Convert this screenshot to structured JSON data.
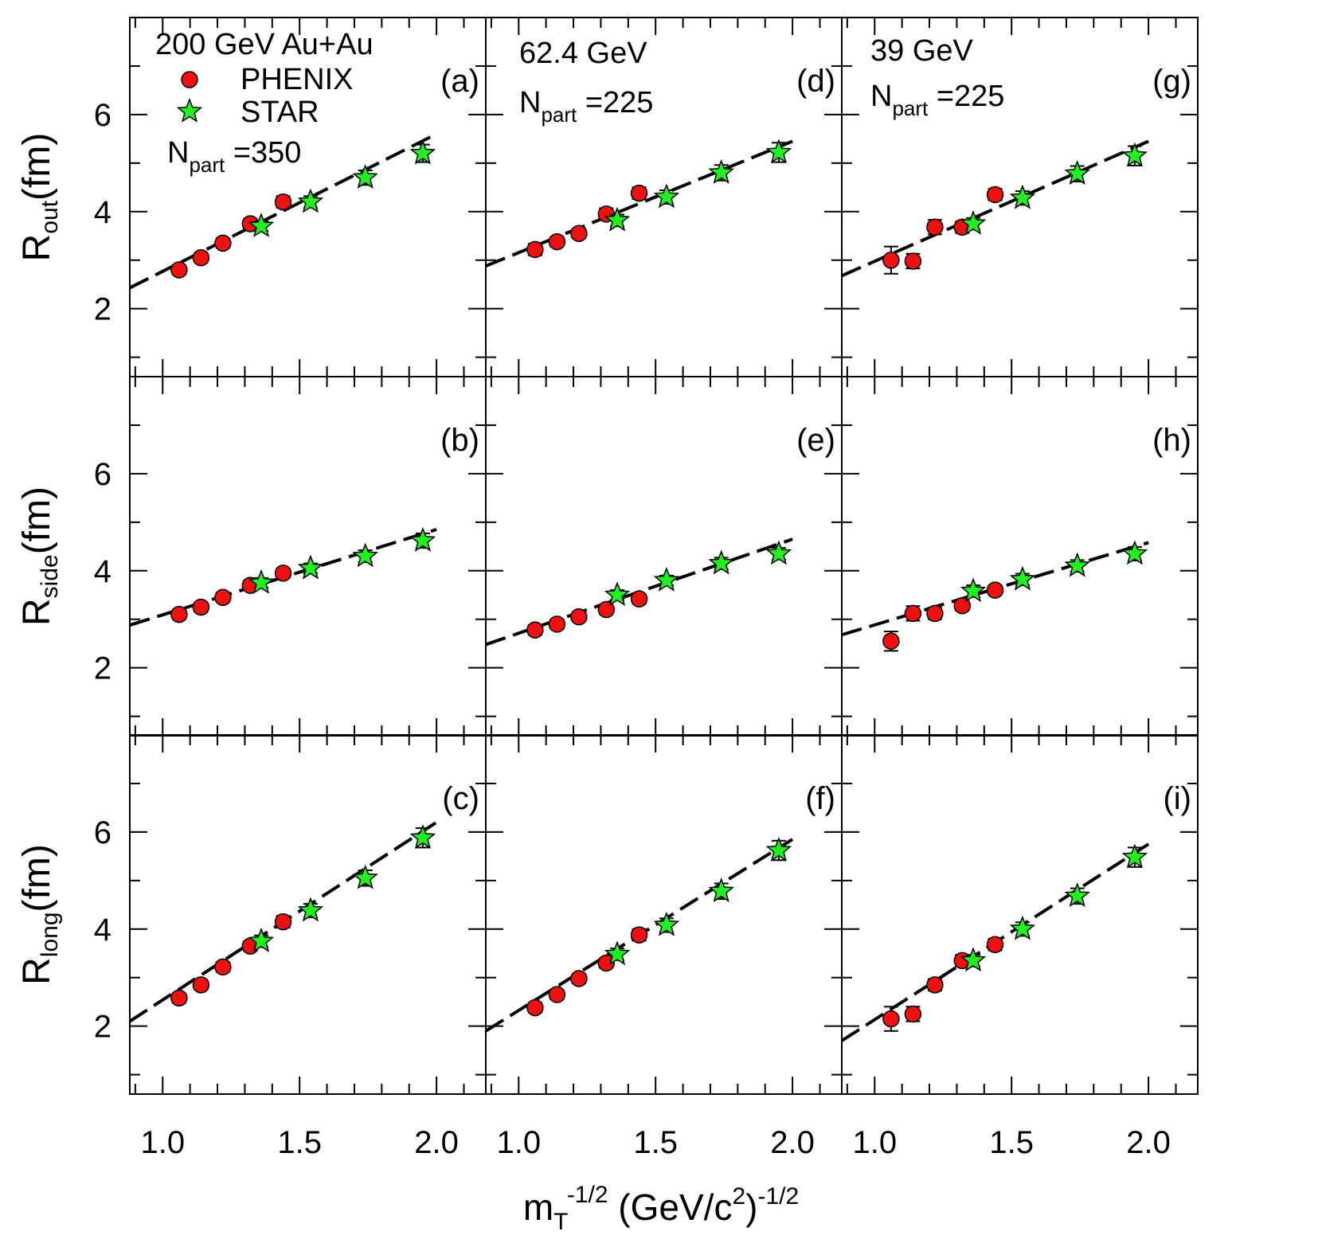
{
  "figure": {
    "x_axis_label": {
      "main": "m",
      "sub": "T",
      "sup": "-1/2",
      "rest": " (GeV/c",
      "sup2": "2",
      "tail": ")",
      "sup3": "-1/2"
    },
    "row_labels": [
      {
        "main": "R",
        "sub": "out",
        "tail": "(fm)"
      },
      {
        "main": "R",
        "sub": "side",
        "tail": "(fm)"
      },
      {
        "main": "R",
        "sub": "long",
        "tail": "(fm)"
      }
    ],
    "x_tick_labels": [
      "1.0",
      "1.5",
      "2.0"
    ],
    "y_tick_labels": [
      "2",
      "4",
      "6"
    ],
    "legend": {
      "phenix": "PHENIX",
      "star": "STAR"
    },
    "col_annotations": [
      {
        "energy": "200 GeV  Au+Au",
        "npart_main": "N",
        "npart_sub": "part",
        "npart_val": " =350"
      },
      {
        "energy": "62.4 GeV",
        "npart_main": "N",
        "npart_sub": "part",
        "npart_val": " =225"
      },
      {
        "energy": "39 GeV",
        "npart_main": "N",
        "npart_sub": "part",
        "npart_val": " =225"
      }
    ]
  },
  "colors": {
    "phenix": "#ee1111",
    "star": "#22ee22",
    "fit": "#000000"
  },
  "chart_data": {
    "type": "scatter",
    "xlim": [
      0.88,
      2.18
    ],
    "ylim": [
      0.6,
      8.0
    ],
    "x_ticks": [
      1.0,
      1.5,
      2.0
    ],
    "y_ticks": [
      2,
      4,
      6
    ],
    "xlabel": "m_T^-1/2 (GeV/c^2)^-1/2",
    "panels": [
      {
        "label": "(a)",
        "col": 0,
        "row": 0,
        "ylabel": "R_out(fm)",
        "phenix": {
          "x": [
            1.06,
            1.14,
            1.22,
            1.32,
            1.44
          ],
          "y": [
            2.8,
            3.05,
            3.35,
            3.75,
            4.2
          ],
          "err": [
            0.08,
            0.08,
            0.08,
            0.1,
            0.12
          ]
        },
        "star": {
          "x": [
            1.36,
            1.54,
            1.74,
            1.95
          ],
          "y": [
            3.7,
            4.2,
            4.7,
            5.2
          ],
          "err": [
            0.1,
            0.12,
            0.15,
            0.18
          ]
        },
        "fit": {
          "x": [
            0.88,
            2.0
          ],
          "y": [
            2.43,
            5.6
          ]
        }
      },
      {
        "label": "(b)",
        "col": 0,
        "row": 1,
        "ylabel": "R_side(fm)",
        "phenix": {
          "x": [
            1.06,
            1.14,
            1.22,
            1.32,
            1.44
          ],
          "y": [
            3.1,
            3.25,
            3.45,
            3.7,
            3.95
          ],
          "err": [
            0.08,
            0.08,
            0.08,
            0.1,
            0.1
          ]
        },
        "star": {
          "x": [
            1.36,
            1.54,
            1.74,
            1.95
          ],
          "y": [
            3.75,
            4.05,
            4.3,
            4.62
          ],
          "err": [
            0.1,
            0.1,
            0.12,
            0.15
          ]
        },
        "fit": {
          "x": [
            0.88,
            2.0
          ],
          "y": [
            2.88,
            4.85
          ]
        }
      },
      {
        "label": "(c)",
        "col": 0,
        "row": 2,
        "ylabel": "R_long(fm)",
        "phenix": {
          "x": [
            1.06,
            1.14,
            1.22,
            1.32,
            1.44
          ],
          "y": [
            2.58,
            2.85,
            3.22,
            3.65,
            4.15
          ],
          "err": [
            0.08,
            0.08,
            0.1,
            0.1,
            0.12
          ]
        },
        "star": {
          "x": [
            1.36,
            1.54,
            1.74,
            1.95
          ],
          "y": [
            3.75,
            4.38,
            5.05,
            5.88
          ],
          "err": [
            0.12,
            0.14,
            0.16,
            0.2
          ]
        },
        "fit": {
          "x": [
            0.88,
            2.0
          ],
          "y": [
            2.1,
            6.2
          ]
        }
      },
      {
        "label": "(d)",
        "col": 1,
        "row": 0,
        "ylabel": "R_out(fm)",
        "phenix": {
          "x": [
            1.06,
            1.14,
            1.22,
            1.32,
            1.44
          ],
          "y": [
            3.22,
            3.38,
            3.55,
            3.95,
            4.38
          ],
          "err": [
            0.12,
            0.1,
            0.1,
            0.12,
            0.12
          ]
        },
        "star": {
          "x": [
            1.36,
            1.54,
            1.74,
            1.95
          ],
          "y": [
            3.82,
            4.3,
            4.8,
            5.22
          ],
          "err": [
            0.12,
            0.14,
            0.16,
            0.2
          ]
        },
        "fit": {
          "x": [
            0.88,
            2.0
          ],
          "y": [
            2.88,
            5.45
          ]
        }
      },
      {
        "label": "(e)",
        "col": 1,
        "row": 1,
        "ylabel": "R_side(fm)",
        "phenix": {
          "x": [
            1.06,
            1.14,
            1.22,
            1.32,
            1.44
          ],
          "y": [
            2.78,
            2.9,
            3.05,
            3.2,
            3.42
          ],
          "err": [
            0.1,
            0.08,
            0.08,
            0.1,
            0.1
          ]
        },
        "star": {
          "x": [
            1.36,
            1.54,
            1.74,
            1.95
          ],
          "y": [
            3.5,
            3.8,
            4.15,
            4.35
          ],
          "err": [
            0.1,
            0.1,
            0.12,
            0.12
          ]
        },
        "fit": {
          "x": [
            0.88,
            2.0
          ],
          "y": [
            2.48,
            4.65
          ]
        }
      },
      {
        "label": "(f)",
        "col": 1,
        "row": 2,
        "ylabel": "R_long(fm)",
        "phenix": {
          "x": [
            1.06,
            1.14,
            1.22,
            1.32,
            1.44
          ],
          "y": [
            2.38,
            2.65,
            2.98,
            3.3,
            3.88
          ],
          "err": [
            0.1,
            0.1,
            0.1,
            0.1,
            0.12
          ]
        },
        "star": {
          "x": [
            1.36,
            1.54,
            1.74,
            1.95
          ],
          "y": [
            3.48,
            4.08,
            4.78,
            5.62
          ],
          "err": [
            0.12,
            0.14,
            0.16,
            0.2
          ]
        },
        "fit": {
          "x": [
            0.88,
            2.0
          ],
          "y": [
            1.9,
            5.85
          ]
        }
      },
      {
        "label": "(g)",
        "col": 2,
        "row": 0,
        "ylabel": "R_out(fm)",
        "phenix": {
          "x": [
            1.06,
            1.14,
            1.22,
            1.32,
            1.44
          ],
          "y": [
            3.0,
            2.98,
            3.68,
            3.68,
            4.35
          ],
          "err": [
            0.28,
            0.15,
            0.15,
            0.12,
            0.12
          ]
        },
        "star": {
          "x": [
            1.36,
            1.54,
            1.74,
            1.95
          ],
          "y": [
            3.75,
            4.28,
            4.78,
            5.15
          ],
          "err": [
            0.12,
            0.14,
            0.16,
            0.2
          ]
        },
        "fit": {
          "x": [
            0.88,
            2.0
          ],
          "y": [
            2.68,
            5.45
          ]
        }
      },
      {
        "label": "(h)",
        "col": 2,
        "row": 1,
        "ylabel": "R_side(fm)",
        "phenix": {
          "x": [
            1.06,
            1.14,
            1.22,
            1.32,
            1.44
          ],
          "y": [
            2.55,
            3.12,
            3.12,
            3.28,
            3.6
          ],
          "err": [
            0.2,
            0.15,
            0.12,
            0.1,
            0.1
          ]
        },
        "star": {
          "x": [
            1.36,
            1.54,
            1.74,
            1.95
          ],
          "y": [
            3.58,
            3.82,
            4.1,
            4.35
          ],
          "err": [
            0.12,
            0.12,
            0.12,
            0.14
          ]
        },
        "fit": {
          "x": [
            0.88,
            2.0
          ],
          "y": [
            2.68,
            4.58
          ]
        }
      },
      {
        "label": "(i)",
        "col": 2,
        "row": 2,
        "ylabel": "R_long(fm)",
        "phenix": {
          "x": [
            1.06,
            1.14,
            1.22,
            1.32,
            1.44
          ],
          "y": [
            2.15,
            2.25,
            2.85,
            3.35,
            3.68
          ],
          "err": [
            0.25,
            0.15,
            0.12,
            0.12,
            0.12
          ]
        },
        "star": {
          "x": [
            1.36,
            1.54,
            1.74,
            1.95
          ],
          "y": [
            3.35,
            4.0,
            4.68,
            5.48
          ],
          "err": [
            0.12,
            0.14,
            0.16,
            0.2
          ]
        },
        "fit": {
          "x": [
            0.88,
            2.0
          ],
          "y": [
            1.7,
            5.75
          ]
        }
      }
    ]
  }
}
